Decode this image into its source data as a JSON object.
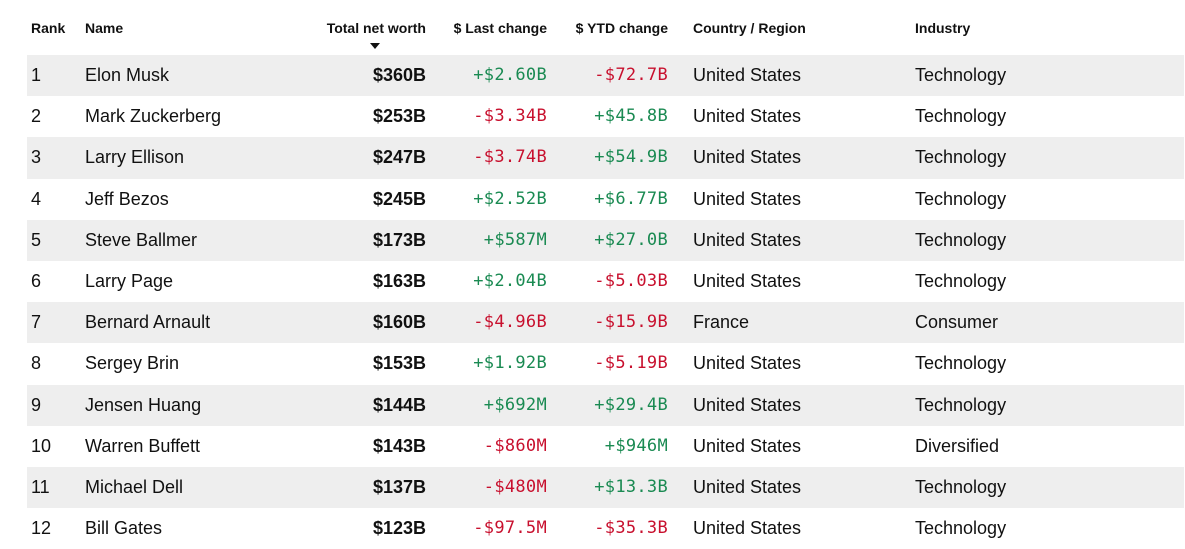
{
  "columns": {
    "rank": "Rank",
    "name": "Name",
    "net_worth": "Total net worth",
    "last_change": "$ Last change",
    "ytd_change": "$ YTD change",
    "country": "Country / Region",
    "industry": "Industry"
  },
  "sort": {
    "column": "net_worth",
    "direction": "descending"
  },
  "colors": {
    "positive": "#1a8a52",
    "negative": "#c8102e",
    "stripe": "#eeeeee"
  },
  "rows": [
    {
      "rank": "1",
      "name": "Elon Musk",
      "net_worth": "$360B",
      "last_change": "+$2.60B",
      "ytd_change": "-$72.7B",
      "country": "United States",
      "industry": "Technology"
    },
    {
      "rank": "2",
      "name": "Mark Zuckerberg",
      "net_worth": "$253B",
      "last_change": "-$3.34B",
      "ytd_change": "+$45.8B",
      "country": "United States",
      "industry": "Technology"
    },
    {
      "rank": "3",
      "name": "Larry Ellison",
      "net_worth": "$247B",
      "last_change": "-$3.74B",
      "ytd_change": "+$54.9B",
      "country": "United States",
      "industry": "Technology"
    },
    {
      "rank": "4",
      "name": "Jeff Bezos",
      "net_worth": "$245B",
      "last_change": "+$2.52B",
      "ytd_change": "+$6.77B",
      "country": "United States",
      "industry": "Technology"
    },
    {
      "rank": "5",
      "name": "Steve Ballmer",
      "net_worth": "$173B",
      "last_change": "+$587M",
      "ytd_change": "+$27.0B",
      "country": "United States",
      "industry": "Technology"
    },
    {
      "rank": "6",
      "name": "Larry Page",
      "net_worth": "$163B",
      "last_change": "+$2.04B",
      "ytd_change": "-$5.03B",
      "country": "United States",
      "industry": "Technology"
    },
    {
      "rank": "7",
      "name": "Bernard Arnault",
      "net_worth": "$160B",
      "last_change": "-$4.96B",
      "ytd_change": "-$15.9B",
      "country": "France",
      "industry": "Consumer"
    },
    {
      "rank": "8",
      "name": "Sergey Brin",
      "net_worth": "$153B",
      "last_change": "+$1.92B",
      "ytd_change": "-$5.19B",
      "country": "United States",
      "industry": "Technology"
    },
    {
      "rank": "9",
      "name": "Jensen Huang",
      "net_worth": "$144B",
      "last_change": "+$692M",
      "ytd_change": "+$29.4B",
      "country": "United States",
      "industry": "Technology"
    },
    {
      "rank": "10",
      "name": "Warren Buffett",
      "net_worth": "$143B",
      "last_change": "-$860M",
      "ytd_change": "+$946M",
      "country": "United States",
      "industry": "Diversified"
    },
    {
      "rank": "11",
      "name": "Michael Dell",
      "net_worth": "$137B",
      "last_change": "-$480M",
      "ytd_change": "+$13.3B",
      "country": "United States",
      "industry": "Technology"
    },
    {
      "rank": "12",
      "name": "Bill Gates",
      "net_worth": "$123B",
      "last_change": "-$97.5M",
      "ytd_change": "-$35.3B",
      "country": "United States",
      "industry": "Technology"
    }
  ]
}
